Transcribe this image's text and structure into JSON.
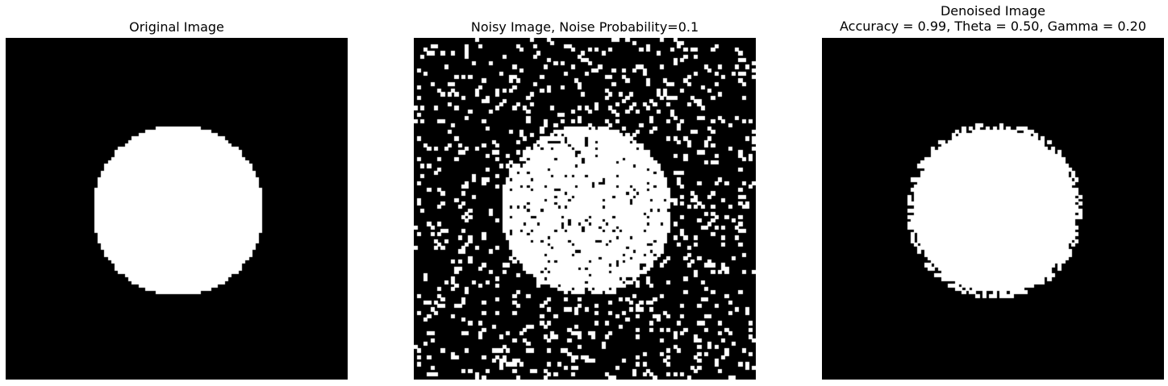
{
  "figure": {
    "panels": [
      {
        "title_lines": [
          "Original Image"
        ],
        "kind": "original"
      },
      {
        "title_lines": [
          "Noisy Image, Noise Probability=0.1"
        ],
        "kind": "noisy",
        "noise_probability": 0.1
      },
      {
        "title_lines": [
          "Denoised Image",
          "Accuracy = 0.99, Theta = 0.50, Gamma = 0.20"
        ],
        "kind": "denoised",
        "accuracy": 0.99,
        "theta": 0.5,
        "gamma": 0.2
      }
    ],
    "colors": {
      "foreground": "#ffffff",
      "background": "#000000"
    }
  }
}
